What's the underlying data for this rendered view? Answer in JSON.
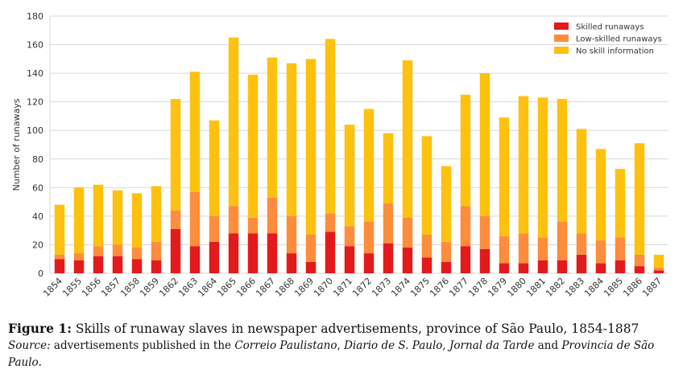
{
  "chart_data": {
    "type": "bar",
    "stacked": true,
    "categories": [
      "1854",
      "1855",
      "1856",
      "1857",
      "1858",
      "1859",
      "1862",
      "1863",
      "1864",
      "1865",
      "1866",
      "1867",
      "1868",
      "1869",
      "1870",
      "1871",
      "1872",
      "1873",
      "1874",
      "1875",
      "1876",
      "1877",
      "1878",
      "1879",
      "1880",
      "1881",
      "1882",
      "1883",
      "1884",
      "1885",
      "1886",
      "1887"
    ],
    "series": [
      {
        "name": "Skilled runaways",
        "color": "#e31a1c",
        "values": [
          10,
          9,
          12,
          12,
          10,
          9,
          31,
          19,
          22,
          28,
          28,
          28,
          14,
          8,
          29,
          19,
          14,
          21,
          18,
          11,
          8,
          19,
          17,
          7,
          7,
          9,
          9,
          13,
          7,
          9,
          5,
          2
        ]
      },
      {
        "name": "Low-skilled runaways",
        "color": "#fd8d3c",
        "values": [
          3,
          5,
          7,
          8,
          8,
          13,
          13,
          38,
          18,
          19,
          11,
          25,
          26,
          19,
          13,
          14,
          22,
          28,
          21,
          16,
          14,
          28,
          23,
          19,
          21,
          16,
          27,
          15,
          16,
          16,
          8,
          2
        ]
      },
      {
        "name": "No skill information",
        "color": "#fec10f",
        "values": [
          35,
          46,
          43,
          38,
          38,
          39,
          78,
          84,
          67,
          118,
          100,
          98,
          107,
          123,
          122,
          71,
          79,
          49,
          110,
          69,
          53,
          78,
          100,
          83,
          96,
          98,
          86,
          73,
          64,
          48,
          78,
          9
        ]
      }
    ],
    "ylabel": "Number of runaways",
    "xlabel": "",
    "ylim": [
      0,
      180
    ],
    "yticks": [
      0,
      20,
      40,
      60,
      80,
      100,
      120,
      140,
      160,
      180
    ],
    "grid": true,
    "legend": "top-right"
  },
  "caption": {
    "figure_label": "Figure 1:",
    "figure_text": " Skills of runaway slaves in newspaper advertisements, province of São Paulo, 1854-1887",
    "source_label": "Source:",
    "source_text_1": " advertisements published in the ",
    "source_paper_1": "Correio Paulistano",
    "source_sep_1": ", ",
    "source_paper_2": "Diario de S. Paulo",
    "source_sep_2": ", ",
    "source_paper_3": "Jornal da Tarde",
    "source_sep_3": " and ",
    "source_paper_4": "Provincia de São Paulo",
    "source_end": "."
  }
}
